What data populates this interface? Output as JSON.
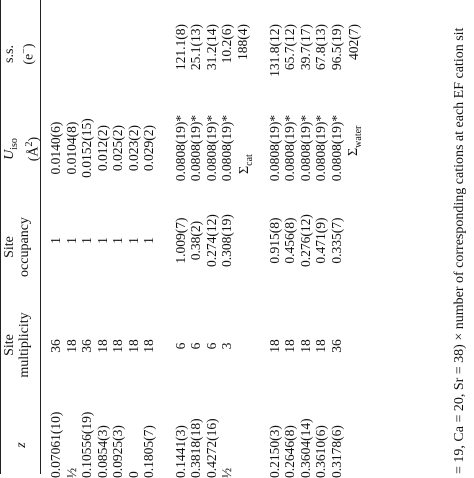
{
  "headers": {
    "z": "z",
    "multiplicity_line1": "Site",
    "multiplicity_line2": "multiplicity",
    "occupancy_line1": "Site",
    "occupancy_line2": "occupancy",
    "uiso_line1": "U",
    "uiso_sub": "iso",
    "uiso_line2": "(Å",
    "uiso_sup": "2",
    "uiso_close": ")",
    "ss_line1": "s.s.",
    "ss_line2": "(e",
    "ss_sup": "−",
    "ss_close": ")"
  },
  "groups": [
    {
      "rows": [
        {
          "z": "0.07061(10)",
          "mult": "36",
          "occ": "1",
          "uiso": "0.0140(6)",
          "ss": ""
        },
        {
          "z": "½",
          "mult": "18",
          "occ": "1",
          "uiso": "0.0104(8)",
          "ss": ""
        },
        {
          "z": "0.10556(19)",
          "mult": "36",
          "occ": "1",
          "uiso": "0.0152(15)",
          "ss": ""
        },
        {
          "z": "0.0854(3)",
          "mult": "18",
          "occ": "1",
          "uiso": "0.012(2)",
          "ss": ""
        },
        {
          "z": "0.0925(3)",
          "mult": "18",
          "occ": "1",
          "uiso": "0.025(2)",
          "ss": ""
        },
        {
          "z": "0",
          "mult": "18",
          "occ": "1",
          "uiso": "0.023(2)",
          "ss": ""
        },
        {
          "z": "0.1805(7)",
          "mult": "18",
          "occ": "1",
          "uiso": "0.029(2)",
          "ss": ""
        }
      ]
    },
    {
      "rows": [
        {
          "z": "0.1441(3)",
          "mult": "6",
          "occ": "1.009(7)",
          "uiso": "0.0808(19)*",
          "ss": "121.1(8)"
        },
        {
          "z": "0.3818(18)",
          "mult": "6",
          "occ": "0.38(2)",
          "uiso": "0.0808(19)*",
          "ss": "25.1(13)"
        },
        {
          "z": "0.4272(16)",
          "mult": "6",
          "occ": "0.274(12)",
          "uiso": "0.0808(19)*",
          "ss": "31.2(14)"
        },
        {
          "z": "½",
          "mult": "3",
          "occ": "0.308(19)",
          "uiso": "0.0808(19)*",
          "ss": "10.2(6)"
        }
      ],
      "sum_label": "Σ",
      "sum_sub": "cat",
      "sum_value": "188(4)"
    },
    {
      "rows": [
        {
          "z": "0.2150(3)",
          "mult": "18",
          "occ": "0.915(8)",
          "uiso": "0.0808(19)*",
          "ss": "131.8(12)"
        },
        {
          "z": "0.2646(8)",
          "mult": "18",
          "occ": "0.456(8)",
          "uiso": "0.0808(19)*",
          "ss": "65.7(12)"
        },
        {
          "z": "0.3604(14)",
          "mult": "18",
          "occ": "0.276(12)",
          "uiso": "0.0808(19)*",
          "ss": "39.7(17)"
        },
        {
          "z": "0.3610(6)",
          "mult": "18",
          "occ": "0.471(9)",
          "uiso": "0.0808(19)*",
          "ss": "67.8(13)"
        },
        {
          "z": "0.3178(6)",
          "mult": "36",
          "occ": "0.335(7)",
          "uiso": "0.0808(19)*",
          "ss": "96.5(19)"
        }
      ],
      "sum_label": "Σ",
      "sum_sub": "water",
      "sum_value": "402(7)"
    }
  ],
  "caption": "= 19, Ca = 20, Sr = 38) × number of corresponding cations at each EF cation sit"
}
